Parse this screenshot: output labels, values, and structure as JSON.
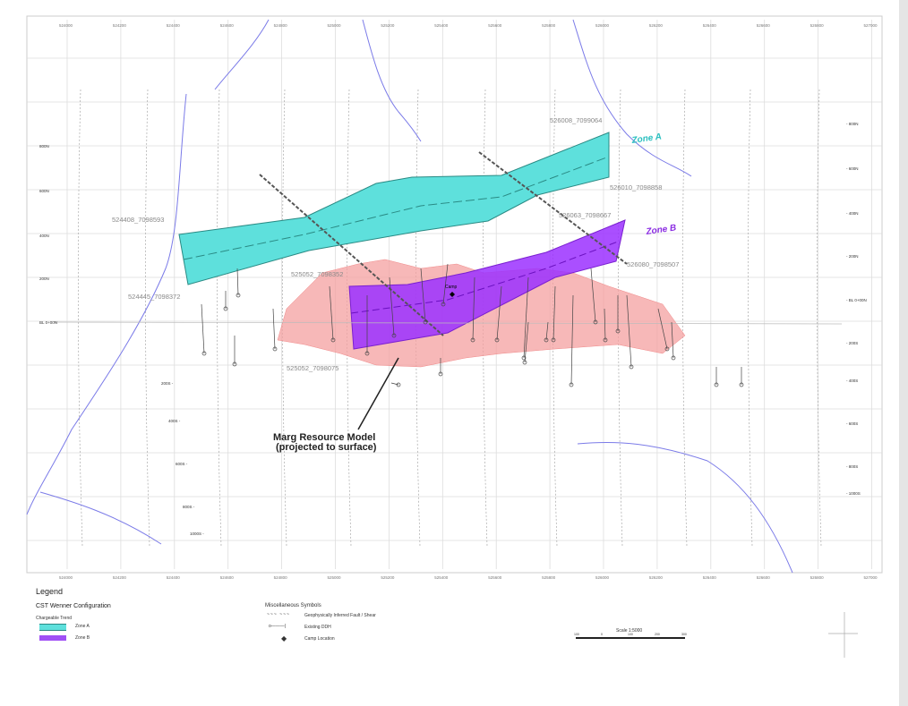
{
  "map": {
    "eastings": [
      "524000",
      "524200",
      "524400",
      "524600",
      "524800",
      "525000",
      "525200",
      "525400",
      "525600",
      "525800",
      "526000",
      "526200",
      "526400",
      "526600",
      "526800",
      "527000"
    ],
    "stations": [
      "800N",
      "600N",
      "400N",
      "200N",
      "BL 0+00N",
      "200S",
      "400S",
      "600S",
      "800S",
      "1000S"
    ],
    "zones": [
      {
        "name": "Zone A",
        "color": "#5ee0dc"
      },
      {
        "name": "Zone B",
        "color": "#9b30ff"
      }
    ],
    "points": [
      "526008_7099064",
      "526010_7098858",
      "526063_7098667",
      "526080_7098507",
      "524408_7098593",
      "524445_7098372",
      "525052_7098352",
      "525052_7098075"
    ],
    "camp_label": "Camp",
    "resource_label_line1": "Marg Resource Model",
    "resource_label_line2": "(projected to surface)",
    "colors": {
      "resource": "#f4a0a0",
      "river": "#7b7be8",
      "grid": "#dddddd"
    }
  },
  "legend": {
    "title": "Legend",
    "config": "CST Wenner Configuration",
    "trend": "Chargeable Trend",
    "zone_a": "Zone A",
    "zone_b": "Zone B",
    "misc_title": "Miscellaneous Symbols",
    "fault": "Geophysically Inferred Fault / Shear",
    "ddh": "Existing DDH",
    "camp": "Camp Location"
  },
  "scale": {
    "label": "Scale 1:5000",
    "ticks": [
      "100",
      "0",
      "100",
      "200",
      "300"
    ]
  }
}
